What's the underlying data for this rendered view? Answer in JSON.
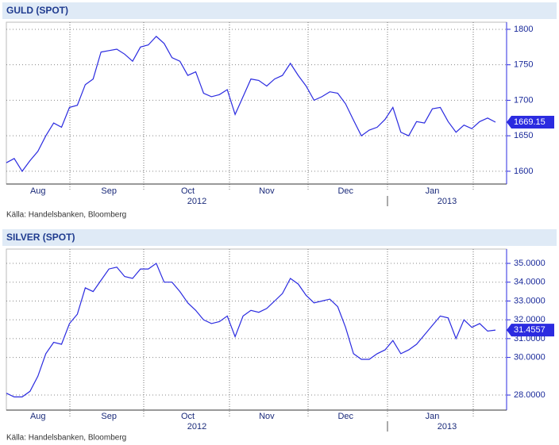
{
  "chart_data": [
    {
      "type": "line",
      "title": "GULD (SPOT)",
      "source": "Källa: Handelsbanken, Bloomberg",
      "years": [
        "2012",
        "2013"
      ],
      "categories": [
        null,
        null,
        null,
        null,
        "Aug",
        null,
        null,
        null,
        null,
        null,
        null,
        null,
        null,
        "Sep",
        null,
        null,
        null,
        null,
        null,
        null,
        null,
        null,
        null,
        "Oct",
        null,
        null,
        null,
        null,
        null,
        null,
        null,
        null,
        null,
        "Nov",
        null,
        null,
        null,
        null,
        null,
        null,
        null,
        null,
        null,
        "Dec",
        null,
        null,
        null,
        null,
        null,
        null,
        null,
        null,
        null,
        null,
        "Jan",
        null,
        null,
        null,
        null,
        null,
        null,
        null,
        null
      ],
      "series": [
        {
          "name": "GULD (SPOT)",
          "color": "#2b2be0",
          "values": [
            1612,
            1618,
            1600,
            1615,
            1628,
            1650,
            1668,
            1662,
            1690,
            1693,
            1722,
            1730,
            1768,
            1770,
            1772,
            1765,
            1755,
            1775,
            1778,
            1790,
            1780,
            1760,
            1755,
            1735,
            1740,
            1710,
            1705,
            1708,
            1715,
            1680,
            1705,
            1730,
            1728,
            1720,
            1730,
            1735,
            1752,
            1735,
            1720,
            1700,
            1705,
            1712,
            1710,
            1695,
            1672,
            1650,
            1658,
            1662,
            1673,
            1690,
            1655,
            1650,
            1670,
            1668,
            1688,
            1690,
            1670,
            1655,
            1665,
            1660,
            1670,
            1675,
            1669.15
          ]
        }
      ],
      "ylim": [
        1582,
        1810
      ],
      "yticks": [
        1600,
        1650,
        1700,
        1750,
        1800
      ],
      "grid": true
    },
    {
      "type": "line",
      "title": "SILVER (SPOT)",
      "source": "Källa: Handelsbanken, Bloomberg",
      "years": [
        "2012",
        "2013"
      ],
      "categories": [
        null,
        null,
        null,
        null,
        "Aug",
        null,
        null,
        null,
        null,
        null,
        null,
        null,
        null,
        "Sep",
        null,
        null,
        null,
        null,
        null,
        null,
        null,
        null,
        null,
        "Oct",
        null,
        null,
        null,
        null,
        null,
        null,
        null,
        null,
        null,
        "Nov",
        null,
        null,
        null,
        null,
        null,
        null,
        null,
        null,
        null,
        "Dec",
        null,
        null,
        null,
        null,
        null,
        null,
        null,
        null,
        null,
        null,
        "Jan",
        null,
        null,
        null,
        null,
        null,
        null,
        null,
        null
      ],
      "series": [
        {
          "name": "SILVER (SPOT)",
          "color": "#2b2be0",
          "values": [
            28.1,
            27.9,
            27.9,
            28.2,
            29.0,
            30.2,
            30.8,
            30.7,
            31.8,
            32.3,
            33.7,
            33.5,
            34.1,
            34.7,
            34.8,
            34.3,
            34.2,
            34.7,
            34.7,
            35.0,
            34.0,
            34.0,
            33.5,
            32.9,
            32.5,
            32.0,
            31.8,
            31.9,
            32.2,
            31.1,
            32.2,
            32.5,
            32.4,
            32.6,
            33.0,
            33.4,
            34.2,
            33.9,
            33.3,
            32.9,
            33.0,
            33.1,
            32.7,
            31.6,
            30.2,
            29.9,
            29.9,
            30.2,
            30.4,
            30.9,
            30.2,
            30.4,
            30.7,
            31.2,
            31.7,
            32.2,
            32.1,
            31.0,
            32.0,
            31.6,
            31.8,
            31.4,
            31.4557
          ]
        }
      ],
      "ylim": [
        27.2,
        35.76
      ],
      "yticks": [
        {
          "value": 28,
          "label": "28.0000"
        },
        {
          "value": 30,
          "label": "30.0000"
        },
        {
          "value": 31,
          "label": "31.0000"
        },
        {
          "value": 32,
          "label": "32.0000"
        },
        {
          "value": 33,
          "label": "33.0000"
        },
        {
          "value": 34,
          "label": "34.0000"
        },
        {
          "value": 35,
          "label": "35.0000"
        }
      ],
      "grid": true
    }
  ]
}
